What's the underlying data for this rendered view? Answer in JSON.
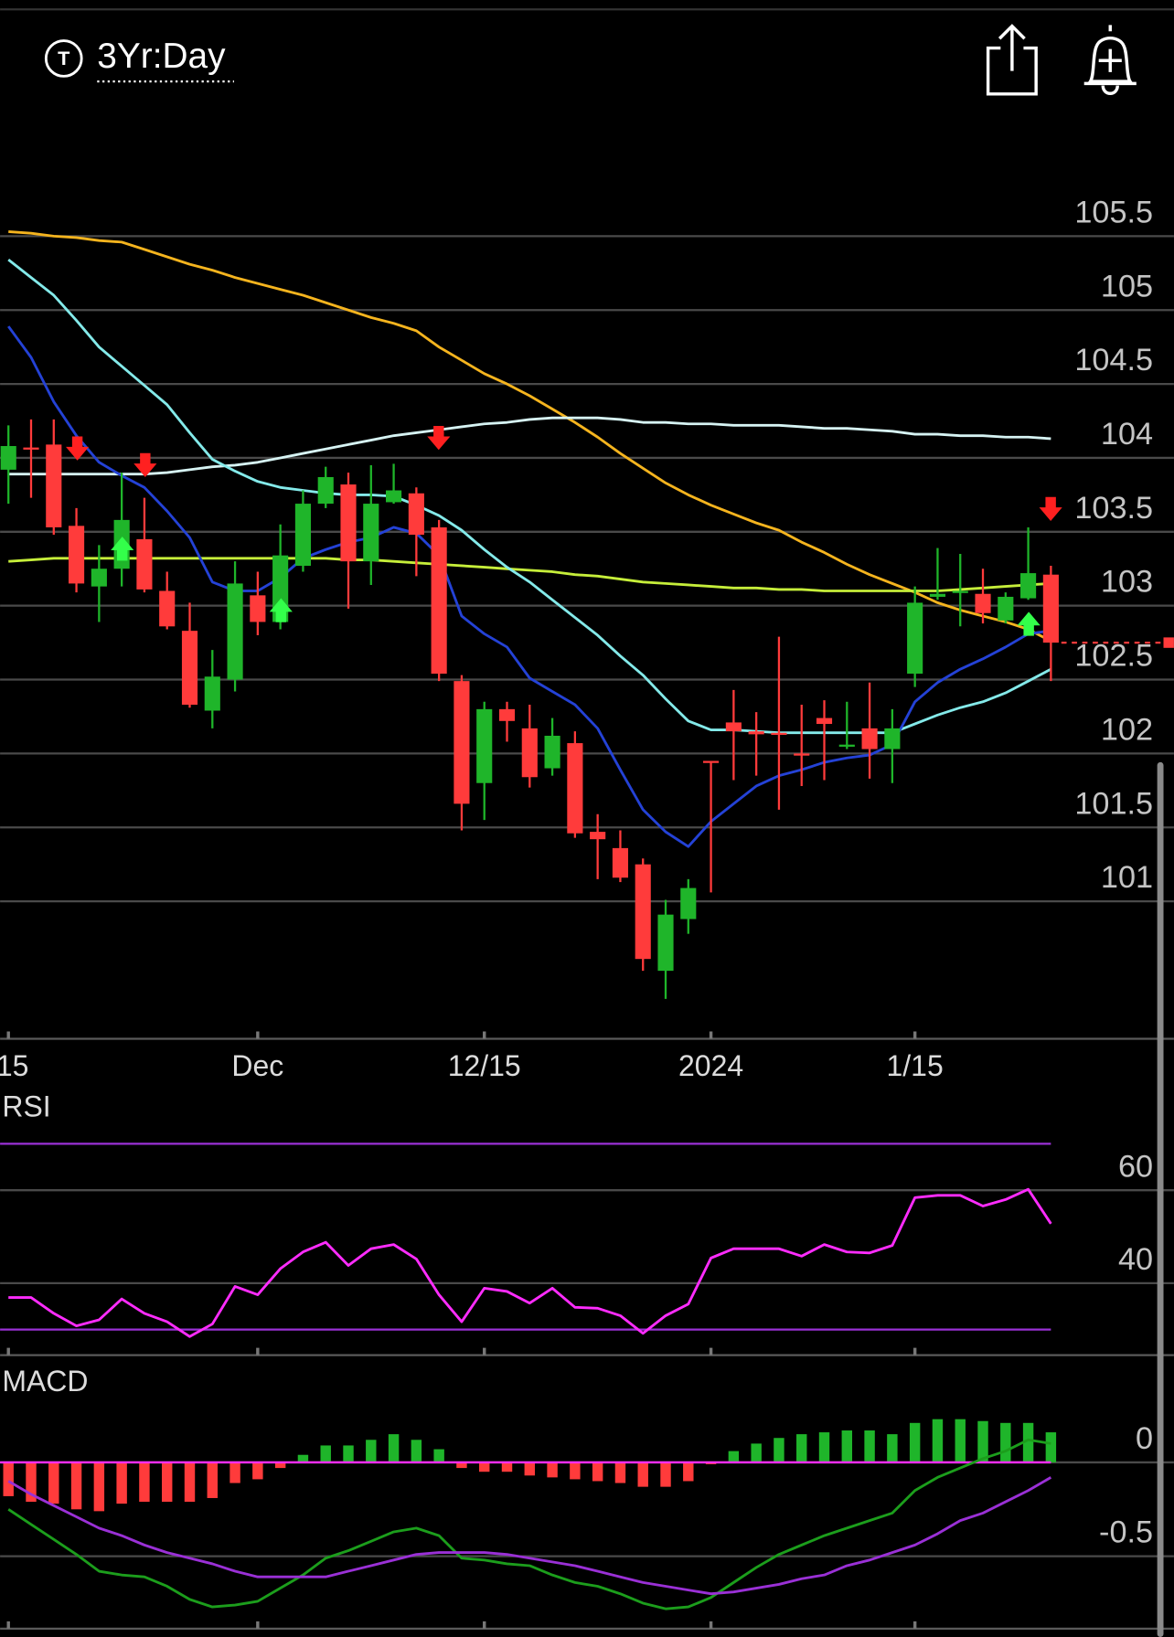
{
  "header": {
    "icon_letter": "T",
    "timeframe": "3Yr:Day"
  },
  "chart_data": [
    {
      "type": "candlestick",
      "categories": [
        "/15",
        null,
        null,
        null,
        null,
        null,
        null,
        null,
        null,
        null,
        null,
        "Dec",
        null,
        null,
        null,
        null,
        null,
        null,
        null,
        null,
        null,
        "12/15",
        null,
        null,
        null,
        null,
        null,
        null,
        null,
        null,
        null,
        "2024",
        null,
        null,
        null,
        null,
        null,
        null,
        null,
        null,
        "1/15",
        null,
        null,
        null,
        null,
        null,
        null
      ],
      "open": [
        103.92,
        104.07,
        104.09,
        103.54,
        103.13,
        103.25,
        103.45,
        103.1,
        102.83,
        102.29,
        102.5,
        103.07,
        102.89,
        103.27,
        103.69,
        103.82,
        103.3,
        103.7,
        103.76,
        103.53,
        102.49,
        101.8,
        102.3,
        102.17,
        101.9,
        102.07,
        101.47,
        101.36,
        101.25,
        100.53,
        100.88,
        101.95,
        102.21,
        102.15,
        102.14,
        102.0,
        102.24,
        102.05,
        102.17,
        102.03,
        102.54,
        103.06,
        103.09,
        103.08,
        102.9,
        103.05,
        103.21
      ],
      "high": [
        104.22,
        104.26,
        104.26,
        103.66,
        103.41,
        103.9,
        103.73,
        103.23,
        103.02,
        102.7,
        103.3,
        103.23,
        103.55,
        103.78,
        103.94,
        103.9,
        103.95,
        103.96,
        103.8,
        103.58,
        102.53,
        102.35,
        102.35,
        102.33,
        102.24,
        102.15,
        101.59,
        101.48,
        101.29,
        101.01,
        101.15,
        101.95,
        102.43,
        102.28,
        102.79,
        102.33,
        102.36,
        102.35,
        102.48,
        102.3,
        103.13,
        103.39,
        103.35,
        103.25,
        103.09,
        103.53,
        103.27
      ],
      "low": [
        103.69,
        103.73,
        103.48,
        103.09,
        102.89,
        103.13,
        103.09,
        102.84,
        102.31,
        102.17,
        102.42,
        102.8,
        102.84,
        103.23,
        103.66,
        102.98,
        103.14,
        103.69,
        103.2,
        102.49,
        101.48,
        101.55,
        102.08,
        101.77,
        101.85,
        101.43,
        101.15,
        101.13,
        100.53,
        100.34,
        100.78,
        101.06,
        101.82,
        101.85,
        101.62,
        101.78,
        101.82,
        102.03,
        101.83,
        101.8,
        102.45,
        103.04,
        102.86,
        102.88,
        102.88,
        103.04,
        102.49
      ],
      "close": [
        104.08,
        104.06,
        103.53,
        103.15,
        103.25,
        103.58,
        103.11,
        102.86,
        102.33,
        102.52,
        103.15,
        102.89,
        103.34,
        103.69,
        103.87,
        103.3,
        103.69,
        103.78,
        103.48,
        102.54,
        101.66,
        102.3,
        102.22,
        101.84,
        102.12,
        101.46,
        101.42,
        101.16,
        100.61,
        100.91,
        101.09,
        101.94,
        102.15,
        102.13,
        102.13,
        101.99,
        102.2,
        102.06,
        102.03,
        102.17,
        103.02,
        103.08,
        103.1,
        102.95,
        103.06,
        103.22,
        102.75
      ],
      "up_color": "#1fb52a",
      "down_color": "#ff3b3b",
      "series": [
        {
          "color": "#f5b41e",
          "values": [
            105.53,
            105.52,
            105.5,
            105.49,
            105.47,
            105.46,
            105.41,
            105.36,
            105.31,
            105.27,
            105.22,
            105.18,
            105.14,
            105.1,
            105.05,
            105.0,
            104.95,
            104.91,
            104.86,
            104.75,
            104.66,
            104.57,
            104.5,
            104.42,
            104.33,
            104.24,
            104.14,
            104.03,
            103.93,
            103.83,
            103.75,
            103.68,
            103.62,
            103.56,
            103.51,
            103.43,
            103.36,
            103.28,
            103.21,
            103.15,
            103.09,
            103.02,
            102.97,
            102.93,
            102.89,
            102.84,
            102.76
          ]
        },
        {
          "color": "#c6ee3a",
          "values": [
            103.3,
            103.31,
            103.32,
            103.32,
            103.32,
            103.32,
            103.32,
            103.32,
            103.32,
            103.32,
            103.32,
            103.32,
            103.32,
            103.32,
            103.32,
            103.31,
            103.31,
            103.3,
            103.29,
            103.28,
            103.27,
            103.26,
            103.25,
            103.24,
            103.23,
            103.21,
            103.2,
            103.18,
            103.16,
            103.15,
            103.14,
            103.13,
            103.12,
            103.12,
            103.11,
            103.11,
            103.1,
            103.1,
            103.1,
            103.1,
            103.1,
            103.1,
            103.11,
            103.12,
            103.13,
            103.14,
            103.15
          ]
        },
        {
          "color": "#d6f3f3",
          "values": [
            103.89,
            103.89,
            103.89,
            103.89,
            103.89,
            103.89,
            103.89,
            103.9,
            103.92,
            103.94,
            103.95,
            103.97,
            104.0,
            104.03,
            104.06,
            104.09,
            104.12,
            104.15,
            104.17,
            104.19,
            104.21,
            104.23,
            104.24,
            104.26,
            104.27,
            104.27,
            104.27,
            104.26,
            104.24,
            104.24,
            104.23,
            104.23,
            104.22,
            104.22,
            104.22,
            104.21,
            104.2,
            104.2,
            104.19,
            104.18,
            104.16,
            104.16,
            104.15,
            104.15,
            104.14,
            104.14,
            104.13
          ]
        },
        {
          "color": "#84eaea",
          "values": [
            105.34,
            105.22,
            105.1,
            104.93,
            104.75,
            104.62,
            104.49,
            104.36,
            104.17,
            103.99,
            103.91,
            103.84,
            103.8,
            103.78,
            103.76,
            103.75,
            103.75,
            103.74,
            103.68,
            103.61,
            103.51,
            103.38,
            103.26,
            103.16,
            103.04,
            102.92,
            102.8,
            102.66,
            102.53,
            102.37,
            102.22,
            102.16,
            102.16,
            102.15,
            102.14,
            102.14,
            102.14,
            102.14,
            102.14,
            102.14,
            102.2,
            102.26,
            102.31,
            102.35,
            102.41,
            102.49,
            102.57
          ]
        },
        {
          "color": "#2442d6",
          "values": [
            104.89,
            104.68,
            104.38,
            104.15,
            103.97,
            103.88,
            103.8,
            103.64,
            103.46,
            103.16,
            103.1,
            103.1,
            103.19,
            103.32,
            103.38,
            103.43,
            103.46,
            103.53,
            103.49,
            103.34,
            102.93,
            102.81,
            102.72,
            102.51,
            102.42,
            102.33,
            102.17,
            101.89,
            101.62,
            101.47,
            101.37,
            101.54,
            101.66,
            101.78,
            101.85,
            101.89,
            101.94,
            101.97,
            101.99,
            102.06,
            102.35,
            102.48,
            102.57,
            102.64,
            102.72,
            102.81,
            102.83
          ]
        }
      ],
      "ylim": [
        100.07,
        106.25
      ],
      "yticks": [
        101,
        101.5,
        102,
        102.5,
        103,
        103.5,
        104,
        104.5,
        105,
        105.5
      ],
      "grid": true
    },
    {
      "type": "line",
      "title": "RSI",
      "color": "#ff2cff",
      "values": [
        36.9,
        36.9,
        33.5,
        30.8,
        32.1,
        36.6,
        33.5,
        31.7,
        28.5,
        31.2,
        39.3,
        37.5,
        43.1,
        46.7,
        48.8,
        43.8,
        47.4,
        48.3,
        45.2,
        37.5,
        31.7,
        38.9,
        38.2,
        35.7,
        38.9,
        34.8,
        34.6,
        33.0,
        29.2,
        33.0,
        35.5,
        45.4,
        47.4,
        47.4,
        47.4,
        45.8,
        48.3,
        46.7,
        46.5,
        48.1,
        58.4,
        58.9,
        58.9,
        56.6,
        58.0,
        60.2,
        52.8
      ],
      "ylim": [
        24.5,
        73.5
      ],
      "yticks": [
        40,
        60
      ],
      "reference_lines": [
        30,
        70
      ],
      "reference_color": "#9a30d6",
      "grid": true
    },
    {
      "type": "macd",
      "title": "MACD",
      "values": [
        -0.18,
        -0.21,
        -0.22,
        -0.25,
        -0.26,
        -0.22,
        -0.21,
        -0.21,
        -0.21,
        -0.19,
        -0.11,
        -0.09,
        -0.03,
        0.04,
        0.09,
        0.09,
        0.12,
        0.15,
        0.12,
        0.07,
        -0.03,
        -0.05,
        -0.05,
        -0.07,
        -0.08,
        -0.09,
        -0.1,
        -0.11,
        -0.13,
        -0.13,
        -0.1,
        -0.01,
        0.06,
        0.1,
        0.13,
        0.15,
        0.16,
        0.17,
        0.17,
        0.15,
        0.21,
        0.23,
        0.23,
        0.22,
        0.21,
        0.21,
        0.16
      ],
      "up_color": "#1fb52a",
      "down_color": "#ff3b3b",
      "series": [
        {
          "color": "#1c9e1c",
          "values": [
            -0.25,
            -0.33,
            -0.41,
            -0.49,
            -0.58,
            -0.6,
            -0.61,
            -0.66,
            -0.73,
            -0.77,
            -0.76,
            -0.74,
            -0.67,
            -0.6,
            -0.51,
            -0.47,
            -0.42,
            -0.37,
            -0.35,
            -0.39,
            -0.51,
            -0.52,
            -0.54,
            -0.55,
            -0.6,
            -0.64,
            -0.66,
            -0.7,
            -0.75,
            -0.78,
            -0.77,
            -0.72,
            -0.64,
            -0.56,
            -0.49,
            -0.44,
            -0.39,
            -0.35,
            -0.31,
            -0.27,
            -0.15,
            -0.08,
            -0.03,
            0.02,
            0.06,
            0.12,
            0.1
          ]
        },
        {
          "color": "#9a30d6",
          "values": [
            -0.1,
            -0.17,
            -0.23,
            -0.29,
            -0.35,
            -0.39,
            -0.44,
            -0.48,
            -0.51,
            -0.54,
            -0.58,
            -0.61,
            -0.61,
            -0.61,
            -0.61,
            -0.58,
            -0.55,
            -0.52,
            -0.49,
            -0.48,
            -0.48,
            -0.48,
            -0.49,
            -0.51,
            -0.53,
            -0.55,
            -0.58,
            -0.61,
            -0.64,
            -0.66,
            -0.68,
            -0.7,
            -0.69,
            -0.67,
            -0.65,
            -0.62,
            -0.6,
            -0.55,
            -0.52,
            -0.48,
            -0.44,
            -0.38,
            -0.31,
            -0.27,
            -0.21,
            -0.15,
            -0.08
          ]
        }
      ],
      "ylim": [
        -0.93,
        0.56
      ],
      "yticks": [
        0,
        -0.5
      ],
      "zero_line_color": "#ff2cff",
      "grid": true
    }
  ]
}
